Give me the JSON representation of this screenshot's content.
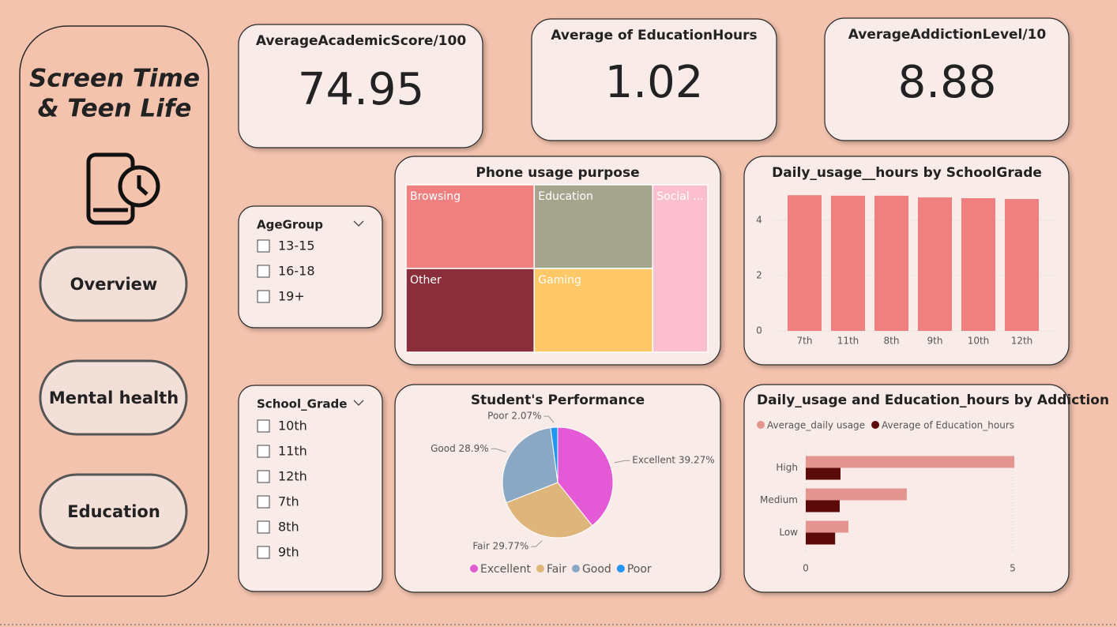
{
  "sidebar": {
    "title_lines": [
      "Screen Time",
      "& Teen Life"
    ],
    "buttons": [
      "Overview",
      "Mental health",
      "Education"
    ]
  },
  "cards": [
    {
      "label": "AverageAcademicScore/100",
      "value": 74.95
    },
    {
      "label": "Average of EducationHours",
      "value": 1.02
    },
    {
      "label": "AverageAddictionLevel/10",
      "value": 8.88
    }
  ],
  "slicers": [
    {
      "title": "AgeGroup",
      "items": [
        "13-15",
        "16-18",
        "19+"
      ]
    },
    {
      "title": "School_Grade",
      "items": [
        "10th",
        "11th",
        "12th",
        "7th",
        "8th",
        "9th"
      ]
    }
  ],
  "chart_data": [
    {
      "type": "treemap",
      "title": "Phone usage purpose",
      "categories": [
        "Browsing",
        "Education",
        "Other",
        "Gaming",
        "Social ..."
      ],
      "values": [
        17.2,
        15.9,
        17.2,
        15.9,
        14.8
      ],
      "colors": [
        "#f08080",
        "#a5a58d",
        "#8b2e3b",
        "#fdc865",
        "#fbbfd0"
      ]
    },
    {
      "type": "bar",
      "title": "Daily_usage__hours by SchoolGrade",
      "categories": [
        "7th",
        "11th",
        "8th",
        "9th",
        "10th",
        "12th"
      ],
      "values": [
        4.91,
        4.89,
        4.89,
        4.83,
        4.8,
        4.77
      ],
      "color": "#f08080",
      "ylim": [
        0,
        5.2
      ],
      "yticks": [
        0,
        2,
        4
      ],
      "grid": true
    },
    {
      "type": "pie",
      "title": "Student's Performance",
      "categories": [
        "Excellent",
        "Fair",
        "Good",
        "Poor"
      ],
      "values": [
        39.27,
        29.77,
        28.9,
        2.07
      ],
      "value_labels": [
        "Excellent 39.27%",
        "Fair 29.77%",
        "Good 28.9%",
        "Poor 2.07%"
      ],
      "colors": [
        "#e45ad6",
        "#deb67c",
        "#8aa8c4",
        "#2196f3"
      ]
    },
    {
      "type": "hbar",
      "title": "Daily_usage and Education_hours by Addiction",
      "categories": [
        "High",
        "Medium",
        "Low"
      ],
      "series": [
        {
          "name": "Average_daily usage",
          "color": "#e4958f",
          "values": [
            5.04,
            2.44,
            1.03
          ]
        },
        {
          "name": "Average of Education_hours",
          "color": "#5c0a0a",
          "values": [
            0.84,
            0.82,
            0.71
          ]
        }
      ],
      "xlim": [
        0,
        6.1
      ],
      "xticks": [
        0,
        5
      ],
      "grid": true
    }
  ]
}
